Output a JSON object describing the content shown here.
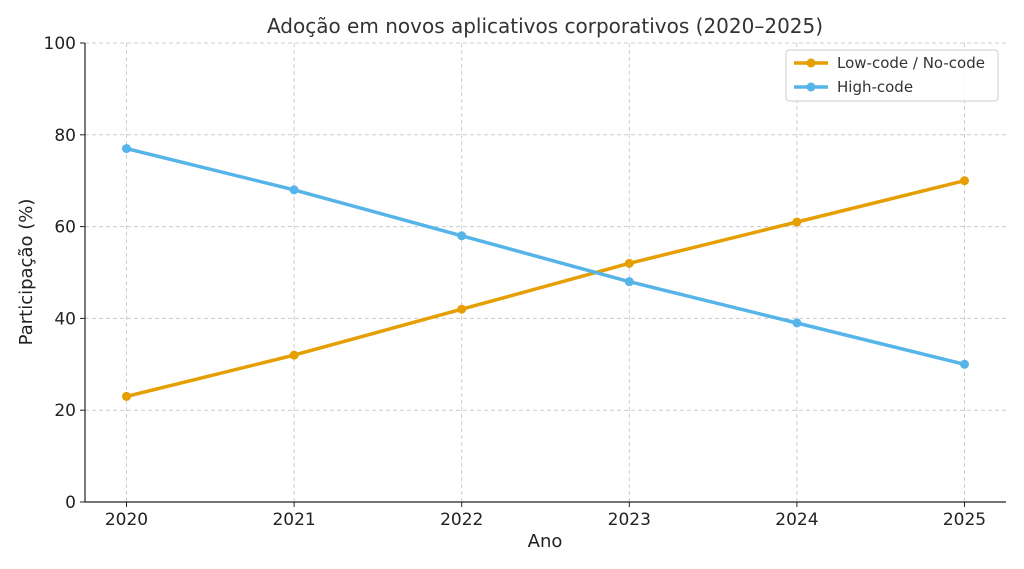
{
  "chart_data": {
    "type": "line",
    "title": "Adoção em novos aplicativos corporativos (2020–2025)",
    "xlabel": "Ano",
    "ylabel": "Participação (%)",
    "x": [
      2020,
      2021,
      2022,
      2023,
      2024,
      2025
    ],
    "x_tick_labels": [
      "2020",
      "2021",
      "2022",
      "2023",
      "2024",
      "2025"
    ],
    "ylim": [
      0,
      100
    ],
    "y_ticks": [
      0,
      20,
      40,
      60,
      80,
      100
    ],
    "y_tick_labels": [
      "0",
      "20",
      "40",
      "60",
      "80",
      "100"
    ],
    "grid": true,
    "legend_position": "top-right",
    "series": [
      {
        "name": "Low-code / No-code",
        "color": "#E69F00",
        "values": [
          23,
          32,
          42,
          52,
          61,
          70
        ]
      },
      {
        "name": "High-code",
        "color": "#56B4E9",
        "values": [
          77,
          68,
          58,
          48,
          39,
          30
        ]
      }
    ]
  }
}
